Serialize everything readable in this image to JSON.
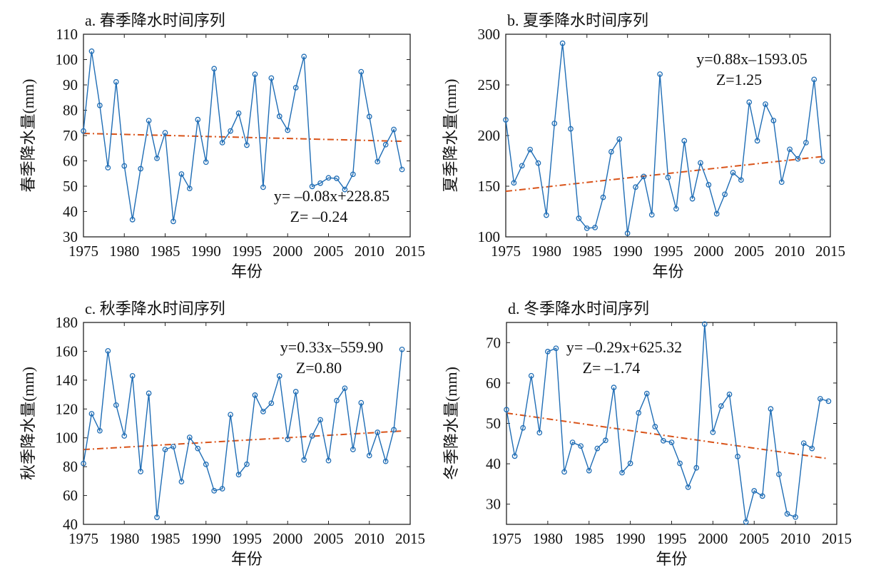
{
  "figure": {
    "series_color": "#1f6db5",
    "trend_color": "#d95319",
    "frame_color": "#222222"
  },
  "chart_data": [
    {
      "id": "a",
      "type": "line",
      "title": "a. 春季降水时间序列",
      "xlabel": "年份",
      "ylabel": "春季降水量(mm)",
      "xlim": [
        1975,
        2015
      ],
      "ylim": [
        30,
        110
      ],
      "xticks": [
        1975,
        1980,
        1985,
        1990,
        1995,
        2000,
        2005,
        2010,
        2015
      ],
      "yticks": [
        30,
        40,
        50,
        60,
        70,
        80,
        90,
        100,
        110
      ],
      "annotation": {
        "equation": "y= –0.08x+228.85",
        "z": "Z= –0.24",
        "position": "bottom-right"
      },
      "trend": {
        "slope": -0.08,
        "intercept": 228.85,
        "x_range": [
          1975,
          2014
        ]
      },
      "x": [
        1975,
        1976,
        1977,
        1978,
        1979,
        1980,
        1981,
        1982,
        1983,
        1984,
        1985,
        1986,
        1987,
        1988,
        1989,
        1990,
        1991,
        1992,
        1993,
        1994,
        1995,
        1996,
        1997,
        1998,
        1999,
        2000,
        2001,
        2002,
        2003,
        2004,
        2005,
        2006,
        2007,
        2008,
        2009,
        2010,
        2011,
        2012,
        2013,
        2014
      ],
      "values": [
        71.8,
        103.3,
        81.9,
        57.3,
        91.2,
        58.0,
        36.8,
        56.9,
        75.9,
        61.0,
        71.1,
        36.1,
        54.8,
        49.1,
        76.3,
        59.5,
        96.4,
        67.2,
        71.8,
        78.8,
        66.2,
        94.2,
        49.6,
        92.7,
        77.6,
        72.1,
        88.9,
        101.2,
        49.9,
        51.2,
        53.3,
        53.1,
        48.7,
        54.7,
        95.2,
        77.5,
        59.7,
        66.4,
        72.4,
        56.6
      ]
    },
    {
      "id": "b",
      "type": "line",
      "title": "b. 夏季降水时间序列",
      "xlabel": "年份",
      "ylabel": "夏季降水量(mm)",
      "xlim": [
        1975,
        2015
      ],
      "ylim": [
        100,
        300
      ],
      "xticks": [
        1975,
        1980,
        1985,
        1990,
        1995,
        2000,
        2005,
        2010,
        2015
      ],
      "yticks": [
        100,
        150,
        200,
        250,
        300
      ],
      "annotation": {
        "equation": "y=0.88x–1593.05",
        "z": "Z=1.25",
        "position": "top-right"
      },
      "trend": {
        "slope": 0.88,
        "intercept": -1593.05,
        "x_range": [
          1975,
          2014
        ]
      },
      "x": [
        1975,
        1976,
        1977,
        1978,
        1979,
        1980,
        1981,
        1982,
        1983,
        1984,
        1985,
        1986,
        1987,
        1988,
        1989,
        1990,
        1991,
        1992,
        1993,
        1994,
        1995,
        1996,
        1997,
        1998,
        1999,
        2000,
        2001,
        2002,
        2003,
        2004,
        2005,
        2006,
        2007,
        2008,
        2009,
        2010,
        2011,
        2012,
        2013,
        2014
      ],
      "values": [
        215.5,
        153.3,
        170.2,
        186.2,
        172.8,
        121.4,
        212.0,
        291.1,
        206.6,
        118.3,
        108.5,
        109.2,
        139.0,
        184.0,
        196.5,
        103.5,
        149.1,
        159.6,
        121.8,
        260.6,
        158.7,
        127.7,
        194.8,
        137.6,
        173.0,
        151.4,
        122.8,
        142.0,
        163.4,
        156.1,
        232.9,
        194.8,
        231.0,
        214.8,
        154.0,
        186.4,
        177.0,
        193.0,
        255.4,
        174.6
      ]
    },
    {
      "id": "c",
      "type": "line",
      "title": "c. 秋季降水时间序列",
      "xlabel": "年份",
      "ylabel": "秋季降水量(mm)",
      "xlim": [
        1975,
        2015
      ],
      "ylim": [
        40,
        180
      ],
      "xticks": [
        1975,
        1980,
        1985,
        1990,
        1995,
        2000,
        2005,
        2010,
        2015
      ],
      "yticks": [
        40,
        60,
        80,
        100,
        120,
        140,
        160,
        180
      ],
      "annotation": {
        "equation": "y=0.33x–559.90",
        "z": "Z=0.80",
        "position": "top-right"
      },
      "trend": {
        "slope": 0.33,
        "intercept": -559.9,
        "x_range": [
          1975,
          2014
        ]
      },
      "x": [
        1975,
        1976,
        1977,
        1978,
        1979,
        1980,
        1981,
        1982,
        1983,
        1984,
        1985,
        1986,
        1987,
        1988,
        1989,
        1990,
        1991,
        1992,
        1993,
        1994,
        1995,
        1996,
        1997,
        1998,
        1999,
        2000,
        2001,
        2002,
        2003,
        2004,
        2005,
        2006,
        2007,
        2008,
        2009,
        2010,
        2011,
        2012,
        2013,
        2014
      ],
      "values": [
        82.2,
        116.7,
        104.9,
        160.3,
        122.7,
        101.3,
        143.0,
        76.6,
        130.9,
        44.9,
        91.9,
        93.9,
        69.6,
        100.3,
        92.6,
        81.6,
        63.3,
        64.7,
        116.1,
        74.5,
        81.7,
        129.6,
        118.2,
        124.0,
        142.9,
        99.0,
        132.0,
        84.7,
        101.3,
        112.5,
        84.2,
        125.8,
        134.4,
        91.9,
        124.3,
        87.7,
        103.8,
        83.7,
        105.6,
        161.3
      ]
    },
    {
      "id": "d",
      "type": "line",
      "title": "d. 冬季降水时间序列",
      "xlabel": "年份",
      "ylabel": "冬季降水量(mm)",
      "xlim": [
        1975,
        2015
      ],
      "ylim": [
        25,
        75
      ],
      "xticks": [
        1975,
        1980,
        1985,
        1990,
        1995,
        2000,
        2005,
        2010,
        2015
      ],
      "yticks": [
        30,
        40,
        50,
        60,
        70
      ],
      "annotation": {
        "equation": "y= –0.29x+625.32",
        "z": "Z= –1.74",
        "position": "top-left"
      },
      "trend": {
        "slope": -0.29,
        "intercept": 625.32,
        "x_range": [
          1975,
          2014
        ]
      },
      "x": [
        1975,
        1976,
        1977,
        1978,
        1979,
        1980,
        1981,
        1982,
        1983,
        1984,
        1985,
        1986,
        1987,
        1988,
        1989,
        1990,
        1991,
        1992,
        1993,
        1994,
        1995,
        1996,
        1997,
        1998,
        1999,
        2000,
        2001,
        2002,
        2003,
        2004,
        2005,
        2006,
        2007,
        2008,
        2009,
        2010,
        2011,
        2012,
        2013,
        2014
      ],
      "values": [
        53.4,
        41.9,
        48.9,
        61.8,
        47.7,
        67.8,
        68.6,
        38.0,
        45.3,
        44.4,
        38.3,
        43.8,
        45.8,
        58.9,
        37.8,
        40.1,
        52.6,
        57.4,
        49.2,
        45.7,
        45.3,
        40.1,
        34.2,
        39.0,
        74.6,
        47.8,
        54.3,
        57.2,
        41.8,
        25.6,
        33.3,
        32.0,
        53.6,
        37.4,
        27.6,
        26.8,
        45.1,
        43.8,
        56.1,
        55.5
      ]
    }
  ]
}
